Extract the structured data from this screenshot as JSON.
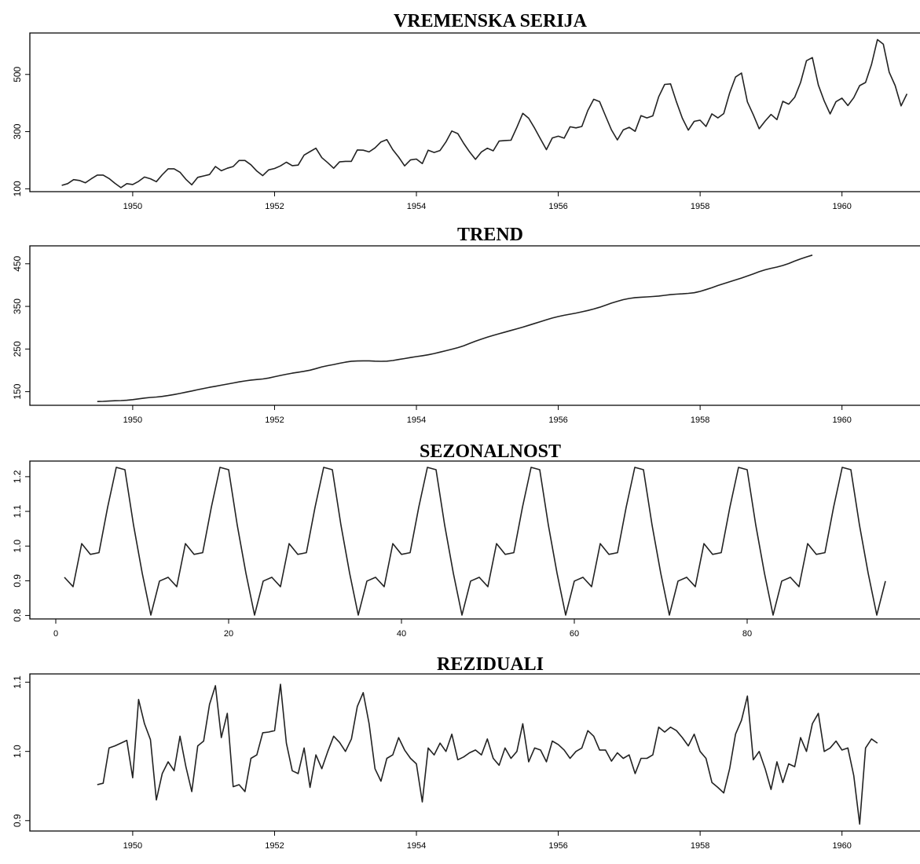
{
  "chart_data": [
    {
      "type": "line",
      "title": "VREMENSKA SERIJA",
      "xlabel": "",
      "ylabel": "",
      "x_start": 1949.0,
      "x_step": 0.08333,
      "x_ticks": [
        1950,
        1952,
        1954,
        1956,
        1958,
        1960
      ],
      "y_ticks": [
        100,
        300,
        500
      ],
      "xlim": [
        1948.55,
        1961.1
      ],
      "ylim": [
        90,
        645
      ],
      "values": [
        112,
        118,
        132,
        129,
        121,
        135,
        148,
        148,
        136,
        119,
        104,
        118,
        115,
        126,
        141,
        135,
        125,
        149,
        170,
        170,
        158,
        133,
        114,
        140,
        145,
        150,
        178,
        163,
        172,
        178,
        199,
        199,
        184,
        162,
        146,
        166,
        171,
        180,
        193,
        181,
        183,
        218,
        230,
        242,
        209,
        191,
        172,
        194,
        196,
        196,
        236,
        235,
        229,
        243,
        264,
        272,
        237,
        211,
        180,
        201,
        204,
        188,
        235,
        227,
        234,
        264,
        302,
        293,
        259,
        229,
        203,
        229,
        242,
        233,
        267,
        269,
        270,
        315,
        364,
        347,
        312,
        274,
        237,
        278,
        284,
        277,
        317,
        313,
        318,
        374,
        413,
        405,
        355,
        306,
        271,
        306,
        315,
        301,
        356,
        348,
        355,
        422,
        465,
        467,
        404,
        347,
        305,
        336,
        340,
        318,
        362,
        348,
        363,
        435,
        491,
        505,
        404,
        359,
        310,
        337,
        360,
        342,
        406,
        396,
        420,
        472,
        548,
        559,
        463,
        407,
        362,
        405,
        417,
        391,
        419,
        461,
        472,
        535,
        622,
        606,
        508,
        461,
        390,
        432
      ]
    },
    {
      "type": "line",
      "title": "TREND",
      "xlabel": "",
      "ylabel": "",
      "x_start": 1949.5,
      "x_step": 0.08333,
      "x_ticks": [
        1950,
        1952,
        1954,
        1956,
        1958,
        1960
      ],
      "y_ticks": [
        150,
        250,
        350,
        450
      ],
      "xlim": [
        1948.55,
        1961.1
      ],
      "ylim": [
        118,
        492
      ],
      "values": [
        126.8,
        127.3,
        127.9,
        128.6,
        129.0,
        129.8,
        131.2,
        133.1,
        135.0,
        136.4,
        137.4,
        138.8,
        140.9,
        143.2,
        145.8,
        148.7,
        151.6,
        154.7,
        157.5,
        160.1,
        162.6,
        165.1,
        167.8,
        170.4,
        172.9,
        175.1,
        177.1,
        178.5,
        179.8,
        182.0,
        185.0,
        188.0,
        190.7,
        193.3,
        195.6,
        197.7,
        200.4,
        204.1,
        208.0,
        211.0,
        213.7,
        216.6,
        219.2,
        221.3,
        222.0,
        222.3,
        222.2,
        221.6,
        221.1,
        221.5,
        223.0,
        225.4,
        227.7,
        230.0,
        232.2,
        234.3,
        236.4,
        239.4,
        242.7,
        246.1,
        249.6,
        253.3,
        257.7,
        263.0,
        268.4,
        273.4,
        277.8,
        282.0,
        285.9,
        289.8,
        293.6,
        297.5,
        301.4,
        305.5,
        309.9,
        314.3,
        318.6,
        322.7,
        326.2,
        329.1,
        331.7,
        334.3,
        337.2,
        340.3,
        343.8,
        348.0,
        352.7,
        357.6,
        362.0,
        365.8,
        368.6,
        370.5,
        371.6,
        372.3,
        373.1,
        374.3,
        376.0,
        377.6,
        378.7,
        379.5,
        380.5,
        382.1,
        385.1,
        389.3,
        394.0,
        398.9,
        403.4,
        407.8,
        412.1,
        416.5,
        421.3,
        426.2,
        431.3,
        435.8,
        439.3,
        442.3,
        445.9,
        450.6,
        456.2,
        461.5,
        466.1,
        470.3
      ]
    },
    {
      "type": "line",
      "title": "SEZONALNOST",
      "xlabel": "",
      "ylabel": "",
      "x_start": 1,
      "x_step": 1,
      "x_ticks": [
        0,
        20,
        40,
        60,
        80
      ],
      "y_ticks": [
        0.8,
        0.9,
        1.0,
        1.1,
        1.2
      ],
      "xlim": [
        -3,
        100
      ],
      "ylim": [
        0.79,
        1.245
      ],
      "values": [
        0.91,
        0.883,
        1.007,
        0.976,
        0.981,
        1.112,
        1.227,
        1.22,
        1.06,
        0.922,
        0.801,
        0.899,
        0.91,
        0.883,
        1.007,
        0.976,
        0.981,
        1.112,
        1.227,
        1.22,
        1.06,
        0.922,
        0.801,
        0.899,
        0.91,
        0.883,
        1.007,
        0.976,
        0.981,
        1.112,
        1.227,
        1.22,
        1.06,
        0.922,
        0.801,
        0.899,
        0.91,
        0.883,
        1.007,
        0.976,
        0.981,
        1.112,
        1.227,
        1.22,
        1.06,
        0.922,
        0.801,
        0.899,
        0.91,
        0.883,
        1.007,
        0.976,
        0.981,
        1.112,
        1.227,
        1.22,
        1.06,
        0.922,
        0.801,
        0.899,
        0.91,
        0.883,
        1.007,
        0.976,
        0.981,
        1.112,
        1.227,
        1.22,
        1.06,
        0.922,
        0.801,
        0.899,
        0.91,
        0.883,
        1.007,
        0.976,
        0.981,
        1.112,
        1.227,
        1.22,
        1.06,
        0.922,
        0.801,
        0.899,
        0.91,
        0.883,
        1.007,
        0.976,
        0.981,
        1.112,
        1.227,
        1.22,
        1.06,
        0.922,
        0.801,
        0.899
      ]
    },
    {
      "type": "line",
      "title": "REZIDUALI",
      "xlabel": "",
      "ylabel": "",
      "x_start": 1949.5,
      "x_step": 0.08333,
      "x_ticks": [
        1950,
        1952,
        1954,
        1956,
        1958,
        1960
      ],
      "y_ticks": [
        0.9,
        1.0,
        1.1
      ],
      "xlim": [
        1948.55,
        1961.1
      ],
      "ylim": [
        0.885,
        1.112
      ],
      "values": [
        0.952,
        0.954,
        1.005,
        1.008,
        1.012,
        1.016,
        0.962,
        1.075,
        1.04,
        1.017,
        0.93,
        0.968,
        0.985,
        0.972,
        1.022,
        0.978,
        0.942,
        1.008,
        1.015,
        1.068,
        1.095,
        1.02,
        1.055,
        0.949,
        0.952,
        0.942,
        0.99,
        0.995,
        1.027,
        1.028,
        1.03,
        1.097,
        1.012,
        0.972,
        0.968,
        1.005,
        0.948,
        0.995,
        0.975,
        1.0,
        1.022,
        1.013,
        1.0,
        1.018,
        1.065,
        1.085,
        1.04,
        0.975,
        0.957,
        0.99,
        0.995,
        1.02,
        1.002,
        0.99,
        0.982,
        0.927,
        1.005,
        0.995,
        1.012,
        1.0,
        1.025,
        0.988,
        0.992,
        0.998,
        1.002,
        0.995,
        1.018,
        0.99,
        0.98,
        1.005,
        0.99,
        1.0,
        1.04,
        0.985,
        1.005,
        1.002,
        0.985,
        1.015,
        1.01,
        1.002,
        0.99,
        1.0,
        1.005,
        1.03,
        1.022,
        1.002,
        1.002,
        0.986,
        0.998,
        0.99,
        0.995,
        0.968,
        0.99,
        0.99,
        0.995,
        1.035,
        1.028,
        1.035,
        1.03,
        1.02,
        1.008,
        1.025,
        1.0,
        0.99,
        0.955,
        0.948,
        0.94,
        0.975,
        1.025,
        1.045,
        1.08,
        0.988,
        1.0,
        0.975,
        0.945,
        0.985,
        0.955,
        0.982,
        0.978,
        1.02,
        1.0,
        1.04,
        1.055,
        1.0,
        1.005,
        1.015,
        1.002,
        1.005,
        0.965,
        0.895,
        1.005,
        1.018,
        1.012
      ]
    }
  ]
}
